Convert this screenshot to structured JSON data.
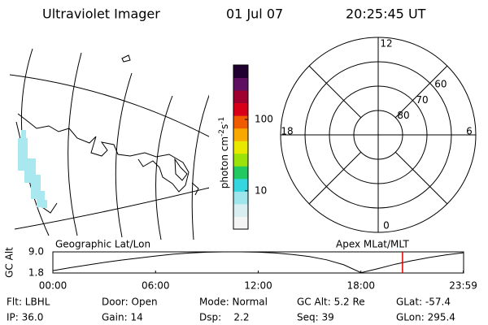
{
  "header": {
    "title": "Ultraviolet Imager",
    "date": "01 Jul 07",
    "time": "20:25:45 UT"
  },
  "colorbar": {
    "label": "photon cm",
    "exp1": "-2",
    "unit2": "s",
    "exp2": "-1",
    "scale": "log",
    "range": [
      2.9,
      580
    ],
    "ticks": [
      10,
      100
    ],
    "colors": [
      "#f4f4f4",
      "#d8eef0",
      "#9fe6ec",
      "#35d6e0",
      "#22c860",
      "#9be20a",
      "#e8e800",
      "#f8a800",
      "#f05a00",
      "#d80018",
      "#a00030",
      "#601060",
      "#200030"
    ]
  },
  "polar": {
    "mlt_ticks": [
      12,
      18,
      6,
      0
    ],
    "lat_rings": [
      60,
      70,
      80
    ],
    "lat_edge": 50
  },
  "lineplot": {
    "left_label": "Geographic Lat/Lon",
    "right_label": "Apex MLat/MLT",
    "ylabel": "GC Alt",
    "ylim": [
      1.8,
      9.0
    ],
    "yticks": [
      {
        "value": 9.0,
        "label": "9.0"
      },
      {
        "value": 1.8,
        "label": "1.8"
      }
    ],
    "xlim": [
      0,
      24
    ],
    "xticks": [
      {
        "value": 0,
        "label": "00:00"
      },
      {
        "value": 6,
        "label": "06:00"
      },
      {
        "value": 12,
        "label": "12:00"
      },
      {
        "value": 18,
        "label": "18:00"
      },
      {
        "value": 23.98,
        "label": "23:59"
      }
    ],
    "hours": [
      0,
      1,
      2,
      3,
      4,
      5,
      6,
      7,
      8,
      9,
      10,
      11,
      12,
      13,
      14,
      15,
      16,
      17,
      18,
      19,
      20,
      21,
      22,
      23,
      23.98
    ],
    "alt": [
      2.6,
      3.6,
      4.5,
      5.4,
      6.2,
      6.9,
      7.6,
      8.2,
      8.6,
      8.9,
      9.0,
      9.0,
      8.9,
      8.6,
      8.1,
      7.4,
      6.3,
      4.6,
      1.9,
      3.3,
      4.8,
      6.0,
      7.1,
      8.0,
      8.7
    ],
    "marker_hour": 20.43,
    "marker_color": "#e00000"
  },
  "footer": {
    "rows": [
      [
        "Flt: LBHL",
        "Door: Open",
        "Mode: Normal",
        "GC Alt: 5.2 Re",
        "GLat: -57.4"
      ],
      [
        "IP: 36.0",
        "Gain: 14",
        "Dsp:    2.2",
        "Seq: 39",
        "GLon: 295.4"
      ]
    ]
  }
}
